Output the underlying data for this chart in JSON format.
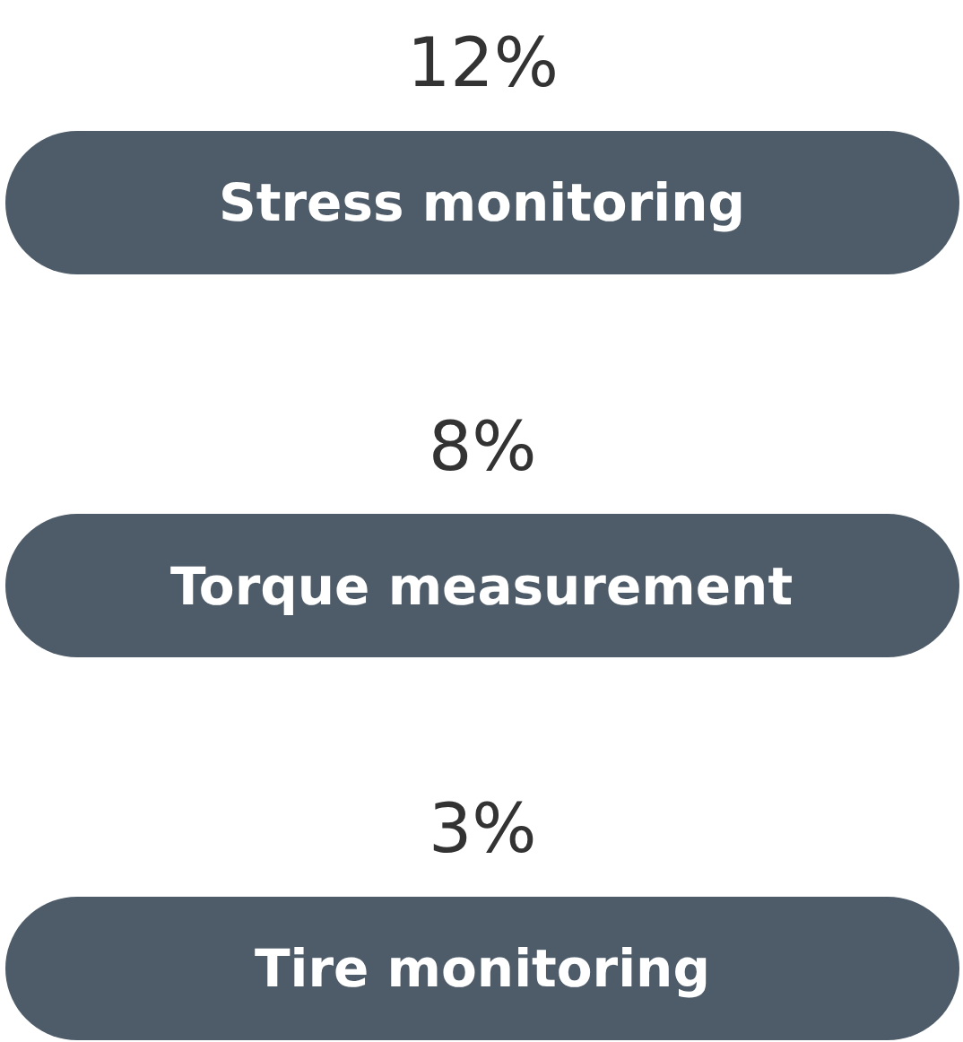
{
  "chart_data": {
    "type": "other",
    "categories": [
      "Stress monitoring",
      "Torque measurement",
      "Tire monitoring"
    ],
    "values": [
      12,
      8,
      3
    ],
    "value_labels": [
      "12%",
      "8%",
      "3%"
    ],
    "color": "#4e5b68"
  }
}
